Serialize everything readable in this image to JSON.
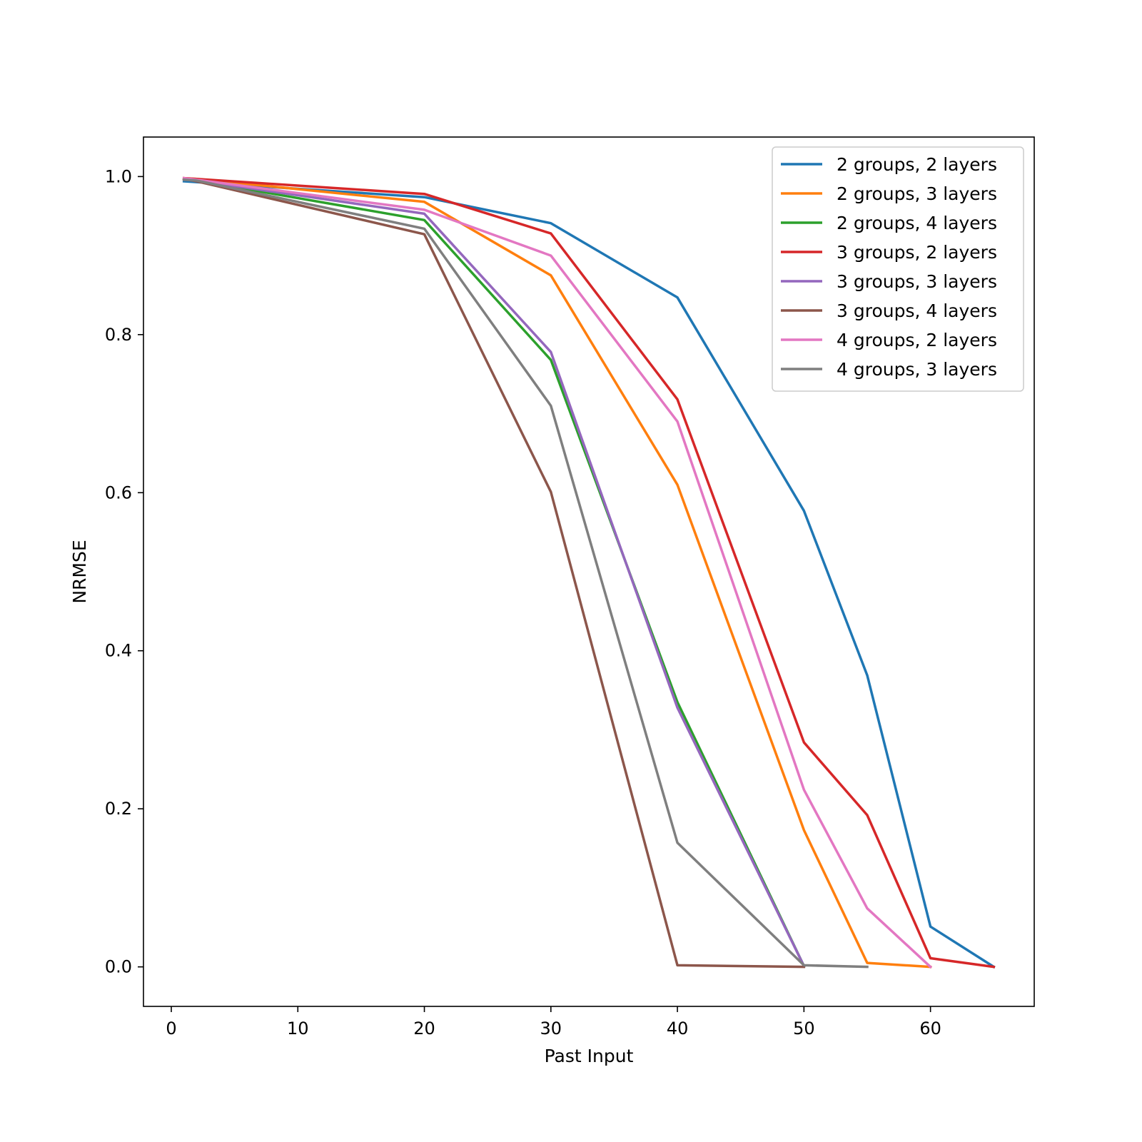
{
  "chart_data": {
    "type": "line",
    "title": "",
    "xlabel": "Past Input",
    "ylabel": "NRMSE",
    "xlim": [
      -2.2,
      68.2
    ],
    "ylim": [
      -0.05,
      1.05
    ],
    "xticks": [
      0,
      10,
      20,
      30,
      40,
      50,
      60
    ],
    "yticks": [
      0.0,
      0.2,
      0.4,
      0.6,
      0.8,
      1.0
    ],
    "xtick_labels": [
      "0",
      "10",
      "20",
      "30",
      "40",
      "50",
      "60"
    ],
    "ytick_labels": [
      "0.0",
      "0.2",
      "0.4",
      "0.6",
      "0.8",
      "1.0"
    ],
    "grid": false,
    "legend_position": "top-right",
    "series": [
      {
        "name": "2 groups, 2 layers",
        "color": "#1f77b4",
        "x": [
          1,
          2,
          20,
          30,
          40,
          50,
          55,
          60,
          65
        ],
        "y": [
          0.994,
          0.993,
          0.974,
          0.941,
          0.847,
          0.577,
          0.369,
          0.051,
          0.0
        ]
      },
      {
        "name": "2 groups, 3 layers",
        "color": "#ff7f0e",
        "x": [
          1,
          2,
          20,
          30,
          40,
          50,
          55,
          60
        ],
        "y": [
          0.998,
          0.997,
          0.968,
          0.875,
          0.61,
          0.173,
          0.005,
          0.0
        ]
      },
      {
        "name": "2 groups, 4 layers",
        "color": "#2ca02c",
        "x": [
          1,
          2,
          20,
          30,
          40,
          50
        ],
        "y": [
          0.997,
          0.995,
          0.945,
          0.768,
          0.335,
          0.001
        ]
      },
      {
        "name": "3 groups, 2 layers",
        "color": "#d62728",
        "x": [
          1,
          2,
          20,
          30,
          40,
          50,
          55,
          60,
          65
        ],
        "y": [
          0.998,
          0.997,
          0.978,
          0.928,
          0.718,
          0.284,
          0.192,
          0.011,
          0.0
        ]
      },
      {
        "name": "3 groups, 3 layers",
        "color": "#9467bd",
        "x": [
          1,
          2,
          20,
          30,
          40,
          50
        ],
        "y": [
          0.997,
          0.995,
          0.953,
          0.778,
          0.328,
          0.001
        ]
      },
      {
        "name": "3 groups, 4 layers",
        "color": "#8c564b",
        "x": [
          1,
          2,
          20,
          30,
          40,
          50
        ],
        "y": [
          0.997,
          0.994,
          0.927,
          0.601,
          0.002,
          0.0
        ]
      },
      {
        "name": "4 groups, 2 layers",
        "color": "#e377c2",
        "x": [
          1,
          2,
          20,
          30,
          40,
          50,
          55,
          60
        ],
        "y": [
          0.998,
          0.996,
          0.958,
          0.9,
          0.69,
          0.224,
          0.074,
          0.0
        ]
      },
      {
        "name": "4 groups, 3 layers",
        "color": "#7f7f7f",
        "x": [
          1,
          2,
          20,
          30,
          40,
          50,
          55
        ],
        "y": [
          0.996,
          0.995,
          0.934,
          0.71,
          0.157,
          0.002,
          0.0
        ]
      }
    ]
  }
}
